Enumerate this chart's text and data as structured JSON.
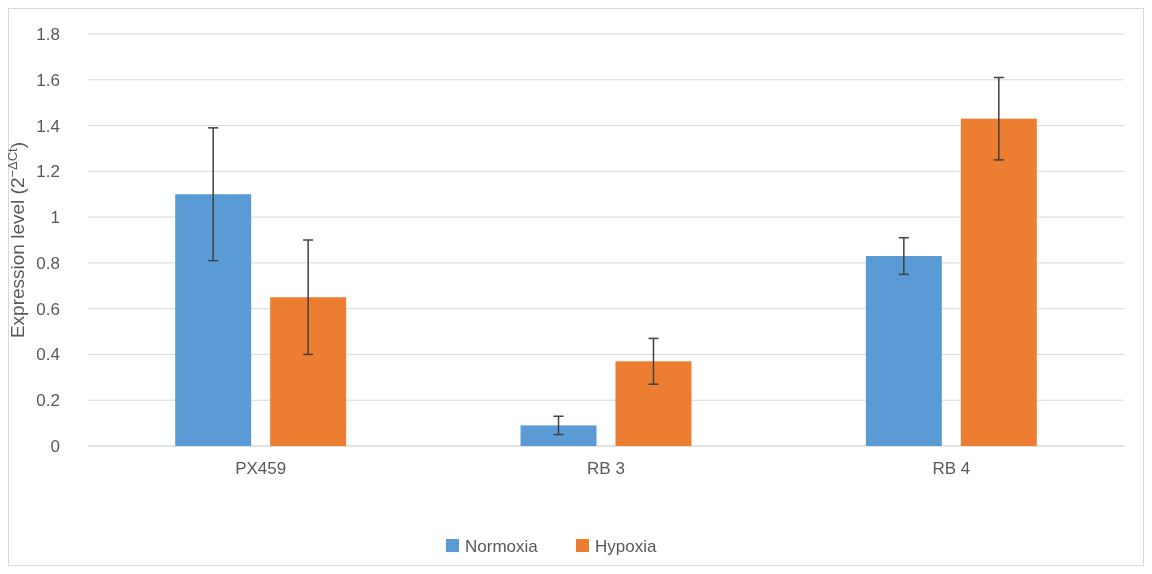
{
  "chart_data": {
    "type": "bar",
    "ylabel": "Expression level (2$^{−ΔCt}$)",
    "categories": [
      "PX459",
      "RB 3",
      "RB 4"
    ],
    "series": [
      {
        "name": "Normoxia",
        "color": "#5b9bd5",
        "values": [
          1.1,
          0.09,
          0.83
        ],
        "errors": [
          0.29,
          0.04,
          0.08
        ]
      },
      {
        "name": "Hypoxia",
        "color": "#ed7d31",
        "values": [
          0.65,
          0.37,
          1.43
        ],
        "errors": [
          0.25,
          0.1,
          0.18
        ]
      }
    ],
    "ylim": [
      0,
      1.8
    ],
    "yticks": [
      0,
      0.2,
      0.4,
      0.6,
      0.8,
      1,
      1.2,
      1.4,
      1.6,
      1.8
    ],
    "grid": "y",
    "legend": "bottom"
  }
}
